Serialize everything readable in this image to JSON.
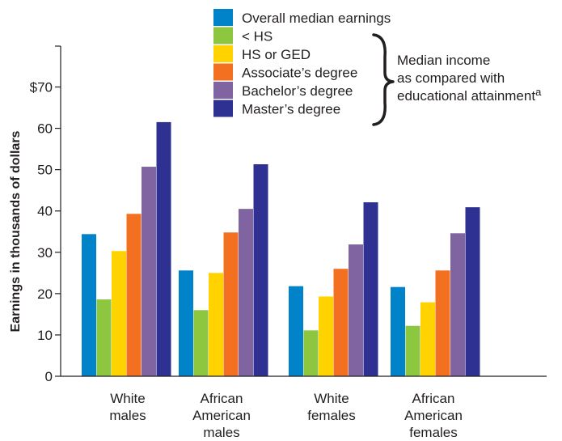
{
  "chart_data": {
    "type": "bar",
    "ylabel": "Earnings  in thousands of dollars",
    "ylim": [
      0,
      80
    ],
    "yticks": [
      {
        "value": 0,
        "label": "0"
      },
      {
        "value": 10,
        "label": "10"
      },
      {
        "value": 20,
        "label": "20"
      },
      {
        "value": 30,
        "label": "30"
      },
      {
        "value": 40,
        "label": "40"
      },
      {
        "value": 50,
        "label": "50"
      },
      {
        "value": 60,
        "label": "60"
      },
      {
        "value": 70,
        "label": "$70"
      }
    ],
    "categories": [
      [
        "White",
        "males"
      ],
      [
        "African",
        "American",
        "males"
      ],
      [
        "White",
        "females"
      ],
      [
        "African",
        "American",
        "females"
      ]
    ],
    "series": [
      {
        "name": "Overall median earnings",
        "color": "#0083c9",
        "values": [
          34.4,
          25.6,
          21.8,
          21.6
        ]
      },
      {
        "name": "< HS",
        "color": "#8dc63f",
        "values": [
          18.6,
          16.0,
          11.1,
          12.2
        ]
      },
      {
        "name": "HS or GED",
        "color": "#ffd200",
        "values": [
          30.3,
          25.0,
          19.3,
          17.9
        ]
      },
      {
        "name": "Associate’s degree",
        "color": "#f37021",
        "values": [
          39.3,
          34.8,
          26.0,
          25.6
        ]
      },
      {
        "name": "Bachelor’s degree",
        "color": "#8064a2",
        "values": [
          50.7,
          40.5,
          31.9,
          34.6
        ]
      },
      {
        "name": "Master’s degree",
        "color": "#2e3192",
        "values": [
          61.5,
          51.3,
          42.1,
          40.9
        ]
      }
    ],
    "legend": {
      "position": "top-right",
      "bracket_text": [
        "Median income",
        "as compared with",
        "educational attainment"
      ],
      "bracket_superscript": "a"
    },
    "grid": false
  }
}
